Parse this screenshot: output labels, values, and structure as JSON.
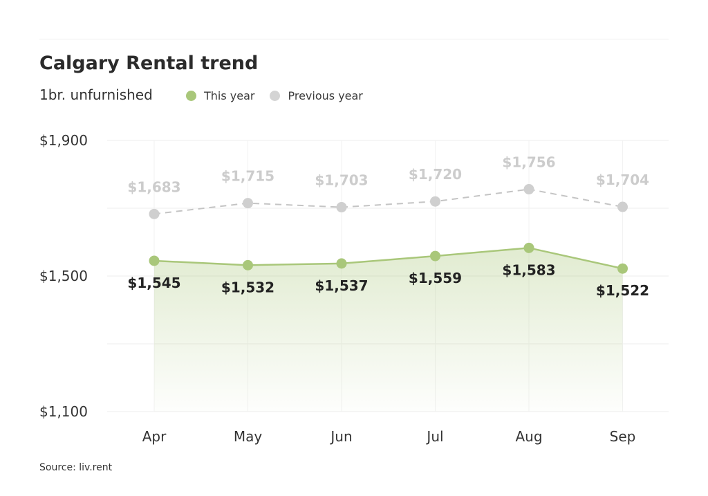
{
  "header": {
    "title": "Calgary Rental trend",
    "subtitle": "1br. unfurnished"
  },
  "legend": {
    "items": [
      {
        "label": "This year",
        "color": "#a9c77a"
      },
      {
        "label": "Previous year",
        "color": "#d4d4d4"
      }
    ]
  },
  "footer": {
    "source": "Source: liv.rent"
  },
  "chart_data": {
    "type": "line",
    "title": "Calgary Rental trend",
    "subtitle": "1br. unfurnished",
    "categories": [
      "Apr",
      "May",
      "Jun",
      "Jul",
      "Aug",
      "Sep"
    ],
    "series": [
      {
        "name": "This year",
        "values": [
          1545,
          1532,
          1537,
          1559,
          1583,
          1522
        ],
        "labels": [
          "$1,545",
          "$1,532",
          "$1,537",
          "$1,559",
          "$1,583",
          "$1,522"
        ],
        "color": "#a9c77a",
        "style": "solid",
        "area_fill": true
      },
      {
        "name": "Previous year",
        "values": [
          1683,
          1715,
          1703,
          1720,
          1756,
          1704
        ],
        "labels": [
          "$1,683",
          "$1,715",
          "$1,703",
          "$1,720",
          "$1,756",
          "$1,704"
        ],
        "color": "#cccccc",
        "style": "dashed"
      }
    ],
    "ylim": [
      1100,
      1900
    ],
    "yticks": [
      1100,
      1300,
      1500,
      1700,
      1900
    ],
    "ytick_labels": [
      "$1,100",
      "",
      "$1,500",
      "",
      "$1,900"
    ],
    "grid": true,
    "legend_position": "top-left",
    "source": "Source: liv.rent"
  }
}
